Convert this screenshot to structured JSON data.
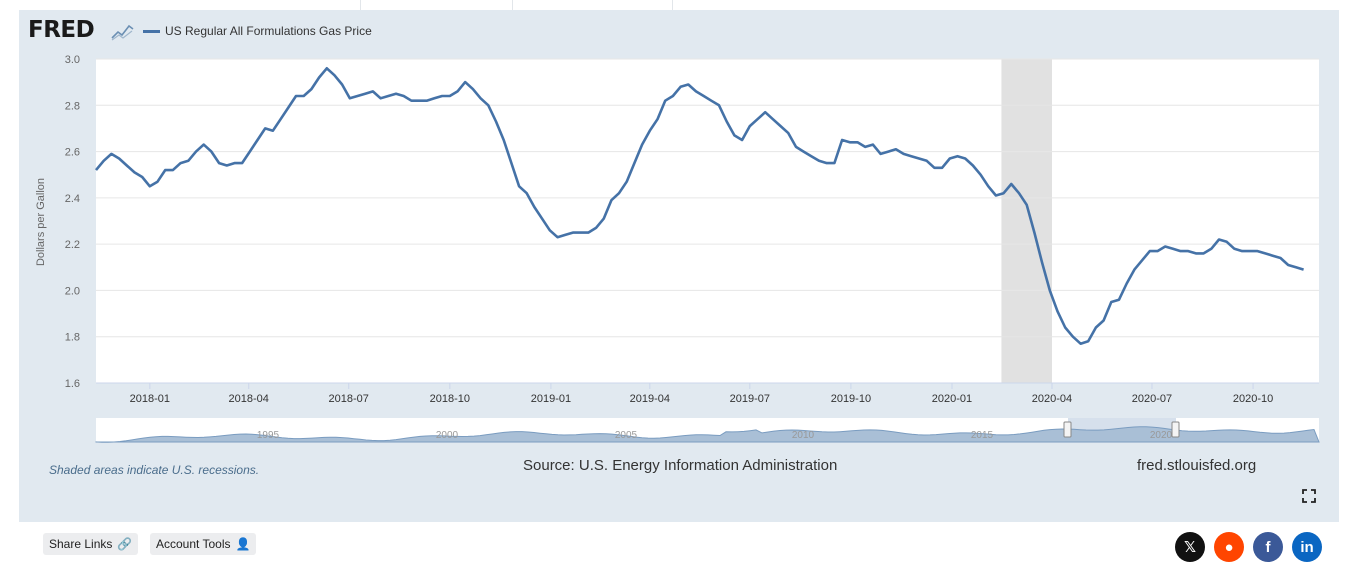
{
  "brand": {
    "logo_text": "FRED",
    "site": "fred.stlouisfed.org"
  },
  "legend": {
    "series_name": "US Regular All Formulations Gas Price",
    "color": "#4572a7"
  },
  "notes": {
    "recession": "Shaded areas indicate U.S. recessions.",
    "source": "Source: U.S. Energy Information Administration"
  },
  "buttons": {
    "share_links": "Share Links",
    "account_tools": "Account Tools"
  },
  "social": [
    {
      "name": "x",
      "label": "𝕏",
      "color": "#111111"
    },
    {
      "name": "reddit",
      "label": "●",
      "color": "#ff4500"
    },
    {
      "name": "facebook",
      "label": "f",
      "color": "#3b5998"
    },
    {
      "name": "linkedin",
      "label": "in",
      "color": "#0a66c2"
    }
  ],
  "navigator_labels": [
    "1995",
    "2000",
    "2005",
    "2010",
    "2015",
    "2020"
  ],
  "chart_data": {
    "type": "line",
    "title": "",
    "xlabel": "",
    "ylabel": "Dollars per Gallon",
    "xlim": [
      "2017-11-13",
      "2020-11-30"
    ],
    "ylim": [
      1.6,
      3.0
    ],
    "y_ticks": [
      "1.6",
      "1.8",
      "2.0",
      "2.2",
      "2.4",
      "2.6",
      "2.8",
      "3.0"
    ],
    "x_ticks": [
      {
        "date": "2018-01-01",
        "label": "2018-01"
      },
      {
        "date": "2018-04-01",
        "label": "2018-04"
      },
      {
        "date": "2018-07-01",
        "label": "2018-07"
      },
      {
        "date": "2018-10-01",
        "label": "2018-10"
      },
      {
        "date": "2019-01-01",
        "label": "2019-01"
      },
      {
        "date": "2019-04-01",
        "label": "2019-04"
      },
      {
        "date": "2019-07-01",
        "label": "2019-07"
      },
      {
        "date": "2019-10-01",
        "label": "2019-10"
      },
      {
        "date": "2020-01-01",
        "label": "2020-01"
      },
      {
        "date": "2020-04-01",
        "label": "2020-04"
      },
      {
        "date": "2020-07-01",
        "label": "2020-07"
      },
      {
        "date": "2020-10-01",
        "label": "2020-10"
      }
    ],
    "recessions": [
      {
        "start": "2020-02-15",
        "end": "2020-04-01"
      }
    ],
    "grid": true,
    "legend": "top-left",
    "series": [
      {
        "name": "US Regular All Formulations Gas Price",
        "color": "#4572a7",
        "points": [
          [
            "2017-11-13",
            2.52
          ],
          [
            "2017-11-20",
            2.56
          ],
          [
            "2017-11-27",
            2.59
          ],
          [
            "2017-12-04",
            2.57
          ],
          [
            "2017-12-11",
            2.54
          ],
          [
            "2017-12-18",
            2.51
          ],
          [
            "2017-12-25",
            2.49
          ],
          [
            "2018-01-01",
            2.45
          ],
          [
            "2018-01-08",
            2.47
          ],
          [
            "2018-01-15",
            2.52
          ],
          [
            "2018-01-22",
            2.52
          ],
          [
            "2018-01-29",
            2.55
          ],
          [
            "2018-02-05",
            2.56
          ],
          [
            "2018-02-12",
            2.6
          ],
          [
            "2018-02-19",
            2.63
          ],
          [
            "2018-02-26",
            2.6
          ],
          [
            "2018-03-05",
            2.55
          ],
          [
            "2018-03-12",
            2.54
          ],
          [
            "2018-03-19",
            2.55
          ],
          [
            "2018-03-26",
            2.55
          ],
          [
            "2018-04-02",
            2.6
          ],
          [
            "2018-04-09",
            2.65
          ],
          [
            "2018-04-16",
            2.7
          ],
          [
            "2018-04-23",
            2.69
          ],
          [
            "2018-04-30",
            2.74
          ],
          [
            "2018-05-07",
            2.79
          ],
          [
            "2018-05-14",
            2.84
          ],
          [
            "2018-05-21",
            2.84
          ],
          [
            "2018-05-28",
            2.87
          ],
          [
            "2018-06-04",
            2.92
          ],
          [
            "2018-06-11",
            2.96
          ],
          [
            "2018-06-18",
            2.93
          ],
          [
            "2018-06-25",
            2.89
          ],
          [
            "2018-07-02",
            2.83
          ],
          [
            "2018-07-09",
            2.84
          ],
          [
            "2018-07-16",
            2.85
          ],
          [
            "2018-07-23",
            2.86
          ],
          [
            "2018-07-30",
            2.83
          ],
          [
            "2018-08-06",
            2.84
          ],
          [
            "2018-08-13",
            2.85
          ],
          [
            "2018-08-20",
            2.84
          ],
          [
            "2018-08-27",
            2.82
          ],
          [
            "2018-09-03",
            2.82
          ],
          [
            "2018-09-10",
            2.82
          ],
          [
            "2018-09-17",
            2.83
          ],
          [
            "2018-09-24",
            2.84
          ],
          [
            "2018-10-01",
            2.84
          ],
          [
            "2018-10-08",
            2.86
          ],
          [
            "2018-10-15",
            2.9
          ],
          [
            "2018-10-22",
            2.87
          ],
          [
            "2018-10-29",
            2.83
          ],
          [
            "2018-11-05",
            2.8
          ],
          [
            "2018-11-12",
            2.73
          ],
          [
            "2018-11-19",
            2.65
          ],
          [
            "2018-11-26",
            2.55
          ],
          [
            "2018-12-03",
            2.45
          ],
          [
            "2018-12-10",
            2.42
          ],
          [
            "2018-12-17",
            2.36
          ],
          [
            "2018-12-24",
            2.31
          ],
          [
            "2018-12-31",
            2.26
          ],
          [
            "2019-01-07",
            2.23
          ],
          [
            "2019-01-14",
            2.24
          ],
          [
            "2019-01-21",
            2.25
          ],
          [
            "2019-01-28",
            2.25
          ],
          [
            "2019-02-04",
            2.25
          ],
          [
            "2019-02-11",
            2.27
          ],
          [
            "2019-02-18",
            2.31
          ],
          [
            "2019-02-25",
            2.39
          ],
          [
            "2019-03-04",
            2.42
          ],
          [
            "2019-03-11",
            2.47
          ],
          [
            "2019-03-18",
            2.55
          ],
          [
            "2019-03-25",
            2.63
          ],
          [
            "2019-04-01",
            2.69
          ],
          [
            "2019-04-08",
            2.74
          ],
          [
            "2019-04-15",
            2.82
          ],
          [
            "2019-04-22",
            2.84
          ],
          [
            "2019-04-29",
            2.88
          ],
          [
            "2019-05-06",
            2.89
          ],
          [
            "2019-05-13",
            2.86
          ],
          [
            "2019-05-20",
            2.84
          ],
          [
            "2019-05-27",
            2.82
          ],
          [
            "2019-06-03",
            2.8
          ],
          [
            "2019-06-10",
            2.73
          ],
          [
            "2019-06-17",
            2.67
          ],
          [
            "2019-06-24",
            2.65
          ],
          [
            "2019-07-01",
            2.71
          ],
          [
            "2019-07-08",
            2.74
          ],
          [
            "2019-07-15",
            2.77
          ],
          [
            "2019-07-22",
            2.74
          ],
          [
            "2019-07-29",
            2.71
          ],
          [
            "2019-08-05",
            2.68
          ],
          [
            "2019-08-12",
            2.62
          ],
          [
            "2019-08-19",
            2.6
          ],
          [
            "2019-08-26",
            2.58
          ],
          [
            "2019-09-02",
            2.56
          ],
          [
            "2019-09-09",
            2.55
          ],
          [
            "2019-09-16",
            2.55
          ],
          [
            "2019-09-23",
            2.65
          ],
          [
            "2019-09-30",
            2.64
          ],
          [
            "2019-10-07",
            2.64
          ],
          [
            "2019-10-14",
            2.62
          ],
          [
            "2019-10-21",
            2.63
          ],
          [
            "2019-10-28",
            2.59
          ],
          [
            "2019-11-04",
            2.6
          ],
          [
            "2019-11-11",
            2.61
          ],
          [
            "2019-11-18",
            2.59
          ],
          [
            "2019-11-25",
            2.58
          ],
          [
            "2019-12-02",
            2.57
          ],
          [
            "2019-12-09",
            2.56
          ],
          [
            "2019-12-16",
            2.53
          ],
          [
            "2019-12-23",
            2.53
          ],
          [
            "2019-12-30",
            2.57
          ],
          [
            "2020-01-06",
            2.58
          ],
          [
            "2020-01-13",
            2.57
          ],
          [
            "2020-01-20",
            2.54
          ],
          [
            "2020-01-27",
            2.5
          ],
          [
            "2020-02-03",
            2.45
          ],
          [
            "2020-02-10",
            2.41
          ],
          [
            "2020-02-17",
            2.42
          ],
          [
            "2020-02-24",
            2.46
          ],
          [
            "2020-03-02",
            2.42
          ],
          [
            "2020-03-09",
            2.37
          ],
          [
            "2020-03-16",
            2.25
          ],
          [
            "2020-03-23",
            2.12
          ],
          [
            "2020-03-30",
            2.0
          ],
          [
            "2020-04-06",
            1.91
          ],
          [
            "2020-04-13",
            1.84
          ],
          [
            "2020-04-20",
            1.8
          ],
          [
            "2020-04-27",
            1.77
          ],
          [
            "2020-05-04",
            1.78
          ],
          [
            "2020-05-11",
            1.84
          ],
          [
            "2020-05-18",
            1.87
          ],
          [
            "2020-05-25",
            1.95
          ],
          [
            "2020-06-01",
            1.96
          ],
          [
            "2020-06-08",
            2.03
          ],
          [
            "2020-06-15",
            2.09
          ],
          [
            "2020-06-22",
            2.13
          ],
          [
            "2020-06-29",
            2.17
          ],
          [
            "2020-07-06",
            2.17
          ],
          [
            "2020-07-13",
            2.19
          ],
          [
            "2020-07-20",
            2.18
          ],
          [
            "2020-07-27",
            2.17
          ],
          [
            "2020-08-03",
            2.17
          ],
          [
            "2020-08-10",
            2.16
          ],
          [
            "2020-08-17",
            2.16
          ],
          [
            "2020-08-24",
            2.18
          ],
          [
            "2020-08-31",
            2.22
          ],
          [
            "2020-09-07",
            2.21
          ],
          [
            "2020-09-14",
            2.18
          ],
          [
            "2020-09-21",
            2.17
          ],
          [
            "2020-09-28",
            2.17
          ],
          [
            "2020-10-05",
            2.17
          ],
          [
            "2020-10-12",
            2.16
          ],
          [
            "2020-10-19",
            2.15
          ],
          [
            "2020-10-26",
            2.14
          ],
          [
            "2020-11-02",
            2.11
          ],
          [
            "2020-11-09",
            2.1
          ],
          [
            "2020-11-16",
            2.09
          ]
        ]
      }
    ]
  }
}
